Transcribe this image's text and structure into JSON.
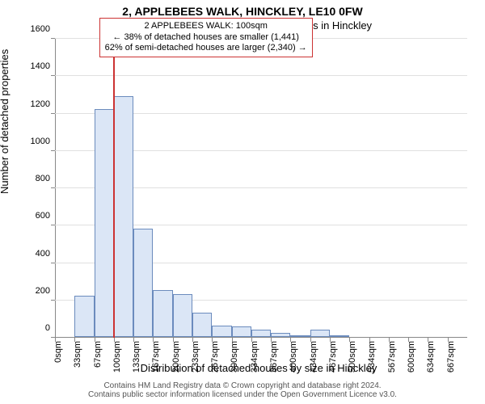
{
  "title_main": "2, APPLEBEES WALK, HINCKLEY, LE10 0FW",
  "title_sub": "Size of property relative to detached houses in Hinckley",
  "xlabel": "Distribution of detached houses by size in Hinckley",
  "ylabel": "Number of detached properties",
  "footer_l1": "Contains HM Land Registry data © Crown copyright and database right 2024.",
  "footer_l2": "Contains public sector information licensed under the Open Government Licence v3.0.",
  "chart": {
    "type": "bar",
    "xlim": [
      0,
      700
    ],
    "ylim": [
      0,
      1600
    ],
    "ytick_step": 200,
    "xtick_step": 33.333,
    "xtick_labels": [
      "0sqm",
      "33sqm",
      "67sqm",
      "100sqm",
      "133sqm",
      "167sqm",
      "200sqm",
      "233sqm",
      "267sqm",
      "300sqm",
      "334sqm",
      "367sqm",
      "400sqm",
      "434sqm",
      "467sqm",
      "500sqm",
      "534sqm",
      "567sqm",
      "600sqm",
      "634sqm",
      "667sqm"
    ],
    "categories_x": [
      0,
      33.33,
      66.67,
      100,
      133.33,
      166.67,
      200,
      233.33,
      266.67,
      300,
      333.33,
      366.67,
      400,
      433.33,
      466.67,
      500,
      533.33,
      566.67,
      600,
      633.33,
      666.67
    ],
    "values": [
      0,
      220,
      1220,
      1290,
      580,
      250,
      230,
      130,
      60,
      55,
      40,
      20,
      5,
      40,
      5,
      0,
      0,
      0,
      0,
      0,
      0
    ],
    "bar_width_units": 33.333,
    "bar_fill": "#dbe6f6",
    "bar_stroke": "#6b8bbd",
    "bg_color": "#ffffff",
    "grid_color": "#e0e0e0",
    "axis_color": "#888888",
    "marker_x": 100,
    "marker_color": "#cc3333",
    "marker_width": 2,
    "title_fontsize": 14,
    "label_fontsize": 13,
    "tick_fontsize": 11,
    "annot_box": {
      "x_units": 75,
      "y_units": 1500,
      "border_color": "#cc3333",
      "bg_color": "#ffffff",
      "fontsize": 11,
      "lines": [
        "2 APPLEBEES WALK: 100sqm",
        "← 38% of detached houses are smaller (1,441)",
        "62% of semi-detached houses are larger (2,340) →"
      ]
    }
  }
}
